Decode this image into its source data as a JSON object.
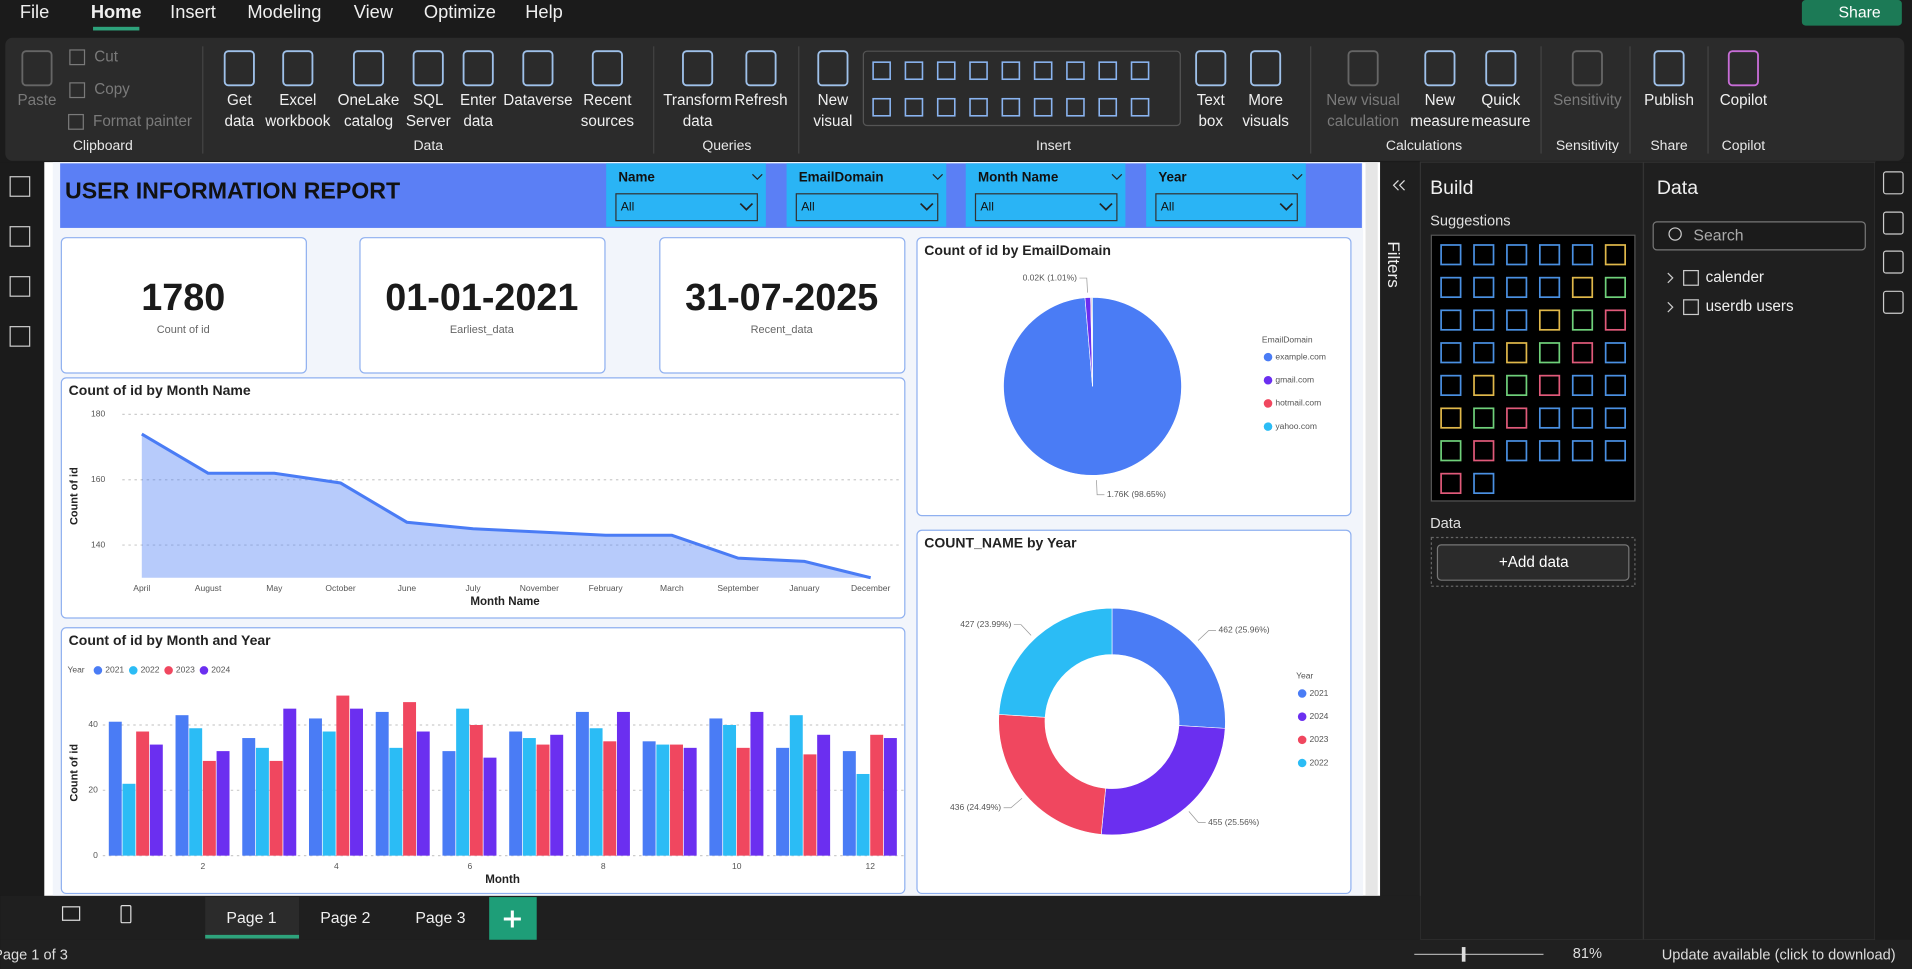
{
  "menu": {
    "tabs": [
      "File",
      "Home",
      "Insert",
      "Modeling",
      "View",
      "Optimize",
      "Help"
    ],
    "share": "Share"
  },
  "ribbon": {
    "groups": [
      {
        "label": "Clipboard",
        "buttons": [
          [
            "Paste"
          ],
          [
            "Cut"
          ],
          [
            "Copy"
          ],
          [
            "Format painter"
          ]
        ]
      },
      {
        "label": "Data",
        "buttons": [
          [
            "Get",
            "data"
          ],
          [
            "Excel",
            "workbook"
          ],
          [
            "OneLake",
            "catalog"
          ],
          [
            "SQL",
            "Server"
          ],
          [
            "Enter",
            "data"
          ],
          [
            "Dataverse"
          ],
          [
            "Recent",
            "sources"
          ]
        ]
      },
      {
        "label": "Queries",
        "buttons": [
          [
            "Transform",
            "data"
          ],
          [
            "Refresh"
          ]
        ]
      },
      {
        "label": "Insert",
        "buttons": [
          [
            "New",
            "visual"
          ],
          [
            "Text",
            "box"
          ],
          [
            "More",
            "visuals"
          ]
        ]
      },
      {
        "label": "Calculations",
        "buttons": [
          [
            "New visual",
            "calculation"
          ],
          [
            "New",
            "measure"
          ],
          [
            "Quick",
            "measure"
          ]
        ]
      },
      {
        "label": "Sensitivity",
        "buttons": [
          [
            "Sensitivity"
          ]
        ]
      },
      {
        "label": "Share",
        "buttons": [
          [
            "Publish"
          ]
        ]
      },
      {
        "label": "Copilot",
        "buttons": [
          [
            "Copilot"
          ]
        ]
      }
    ]
  },
  "report": {
    "title": "USER INFORMATION REPORT",
    "slicers": [
      {
        "label": "Name",
        "value": "All"
      },
      {
        "label": "EmailDomain",
        "value": "All"
      },
      {
        "label": "Month Name",
        "value": "All"
      },
      {
        "label": "Year",
        "value": "All"
      }
    ],
    "cards": [
      {
        "value": 1780,
        "label": "Count of id"
      },
      {
        "value": "01-01-2021",
        "label": "Earliest_data"
      },
      {
        "value": "31-07-2025",
        "label": "Recent_data"
      }
    ]
  },
  "chart_data": [
    {
      "type": "area",
      "title": "Count of id by Month Name",
      "x_label": "Month Name",
      "y_label": "Count of id",
      "categories": [
        "April",
        "August",
        "May",
        "October",
        "June",
        "July",
        "November",
        "February",
        "March",
        "September",
        "January",
        "December"
      ],
      "values": [
        174,
        162,
        162,
        159,
        147,
        145,
        144,
        143,
        143,
        136,
        135,
        130
      ],
      "color": "#4a7cf5",
      "ylim": [
        130,
        180
      ],
      "yticks": [
        140,
        160,
        180
      ],
      "grid": true
    },
    {
      "type": "pie",
      "title": "Count of id by EmailDomain",
      "legend_title": "EmailDomain",
      "categories": [
        "example.com",
        "gmail.com",
        "hotmail.com",
        "yahoo.com"
      ],
      "values": [
        1756,
        18,
        3,
        3
      ],
      "value_labels": [
        "1.76K (98.65%)",
        "0.02K (1.01%)",
        null,
        null
      ],
      "colors": [
        "#4a7cf5",
        "#6b2ff0",
        "#f0475f",
        "#2bbcf5"
      ]
    },
    {
      "type": "bar",
      "title": "Count of id by Month and Year",
      "legend_title": "Year",
      "x_label": "Month",
      "y_label": "Count of id",
      "x": [
        1,
        2,
        3,
        4,
        5,
        6,
        7,
        8,
        9,
        10,
        11,
        12
      ],
      "xlim": [
        0.5,
        12.5
      ],
      "xticks": [
        2,
        4,
        6,
        8,
        10,
        12
      ],
      "ylim": [
        0,
        50
      ],
      "yticks": [
        0,
        20,
        40
      ],
      "grid": true,
      "series": [
        {
          "name": "2021",
          "color": "#4a7cf5",
          "values": [
            41,
            43,
            36,
            42,
            44,
            32,
            38,
            44,
            35,
            42,
            33,
            32
          ]
        },
        {
          "name": "2022",
          "color": "#2bbcf5",
          "values": [
            22,
            39,
            33,
            38,
            33,
            45,
            36,
            39,
            34,
            40,
            43,
            25
          ]
        },
        {
          "name": "2023",
          "color": "#f0475f",
          "values": [
            38,
            29,
            29,
            49,
            47,
            40,
            34,
            35,
            34,
            33,
            31,
            37
          ]
        },
        {
          "name": "2024",
          "color": "#6b2ff0",
          "values": [
            34,
            32,
            45,
            45,
            38,
            30,
            37,
            44,
            33,
            44,
            37,
            36
          ]
        }
      ]
    },
    {
      "type": "donut",
      "title": "COUNT_NAME by Year",
      "legend_title": "Year",
      "categories": [
        "2021",
        "2024",
        "2023",
        "2022"
      ],
      "values": [
        462,
        455,
        436,
        427
      ],
      "value_labels": [
        "462 (25.96%)",
        "455 (25.56%)",
        "436 (24.49%)",
        "427 (23.99%)"
      ],
      "colors": [
        "#4a7cf5",
        "#6b2ff0",
        "#f0475f",
        "#2bbcf5"
      ]
    }
  ],
  "filters_pane": {
    "title": "Filters"
  },
  "build_pane": {
    "title": "Build",
    "suggestions": "Suggestions",
    "data_label": "Data",
    "add_data": "+Add data"
  },
  "data_pane": {
    "title": "Data",
    "search": "Search",
    "tables": [
      "calender",
      "userdb users"
    ]
  },
  "page_tabs": [
    "Page 1",
    "Page 2",
    "Page 3"
  ],
  "status": {
    "page": "Page 1 of 3",
    "zoom": "81%",
    "update": "Update available (click to download)"
  }
}
